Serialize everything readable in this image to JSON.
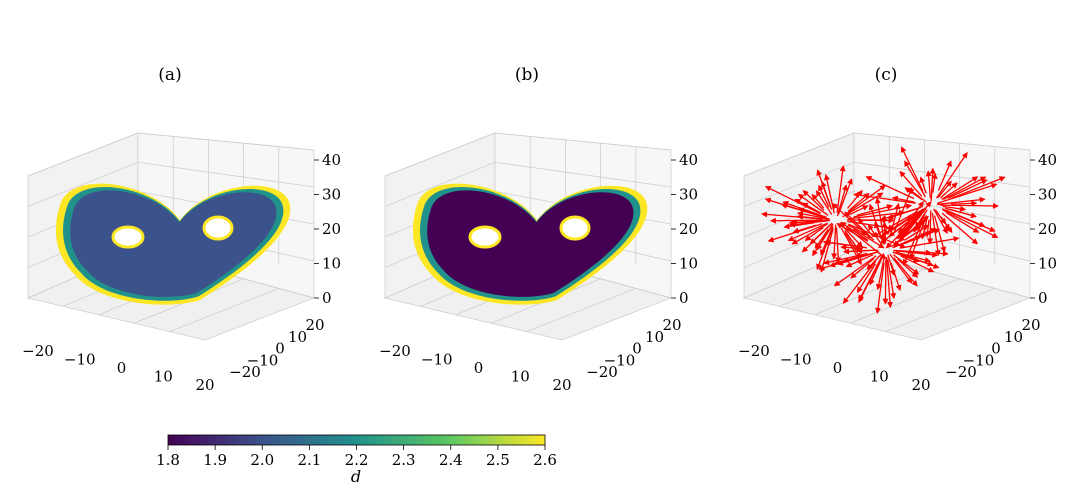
{
  "chart_data": [
    {
      "panel": "(a)",
      "type": "scatter",
      "projection": "3d",
      "x_ticks": [
        "−20",
        "−10",
        "0",
        "10",
        "20"
      ],
      "y_ticks": [
        "−20",
        "−10",
        "0",
        "10",
        "20"
      ],
      "z_ticks": [
        "0",
        "10",
        "20",
        "30",
        "40"
      ],
      "xlim": [
        -20,
        20
      ],
      "ylim": [
        -20,
        20
      ],
      "zlim": [
        0,
        40
      ],
      "color_by": "d",
      "grid": true
    },
    {
      "panel": "(b)",
      "type": "scatter",
      "projection": "3d",
      "x_ticks": [
        "−20",
        "−10",
        "0",
        "10",
        "20"
      ],
      "y_ticks": [
        "−20",
        "−10",
        "0",
        "10",
        "20"
      ],
      "z_ticks": [
        "0",
        "10",
        "20",
        "30",
        "40"
      ],
      "xlim": [
        -20,
        20
      ],
      "ylim": [
        -20,
        20
      ],
      "zlim": [
        0,
        40
      ],
      "color_by": "d",
      "grid": true
    },
    {
      "panel": "(c)",
      "type": "quiver",
      "projection": "3d",
      "arrow_color": "#ff0000",
      "x_ticks": [
        "−20",
        "−10",
        "0",
        "10",
        "20"
      ],
      "y_ticks": [
        "−20",
        "−10",
        "0",
        "10",
        "20"
      ],
      "z_ticks": [
        "0",
        "10",
        "20",
        "30",
        "40"
      ],
      "xlim": [
        -20,
        20
      ],
      "ylim": [
        -20,
        20
      ],
      "zlim": [
        0,
        40
      ],
      "grid": true
    }
  ],
  "colorbar": {
    "label": "d",
    "ticks": [
      "1.8",
      "1.9",
      "2.0",
      "2.1",
      "2.2",
      "2.3",
      "2.4",
      "2.5",
      "2.6"
    ],
    "range": [
      1.8,
      2.6
    ],
    "colormap": "viridis",
    "colors": [
      "#440154",
      "#3b528b",
      "#21918c",
      "#5ec962",
      "#fde725"
    ]
  }
}
